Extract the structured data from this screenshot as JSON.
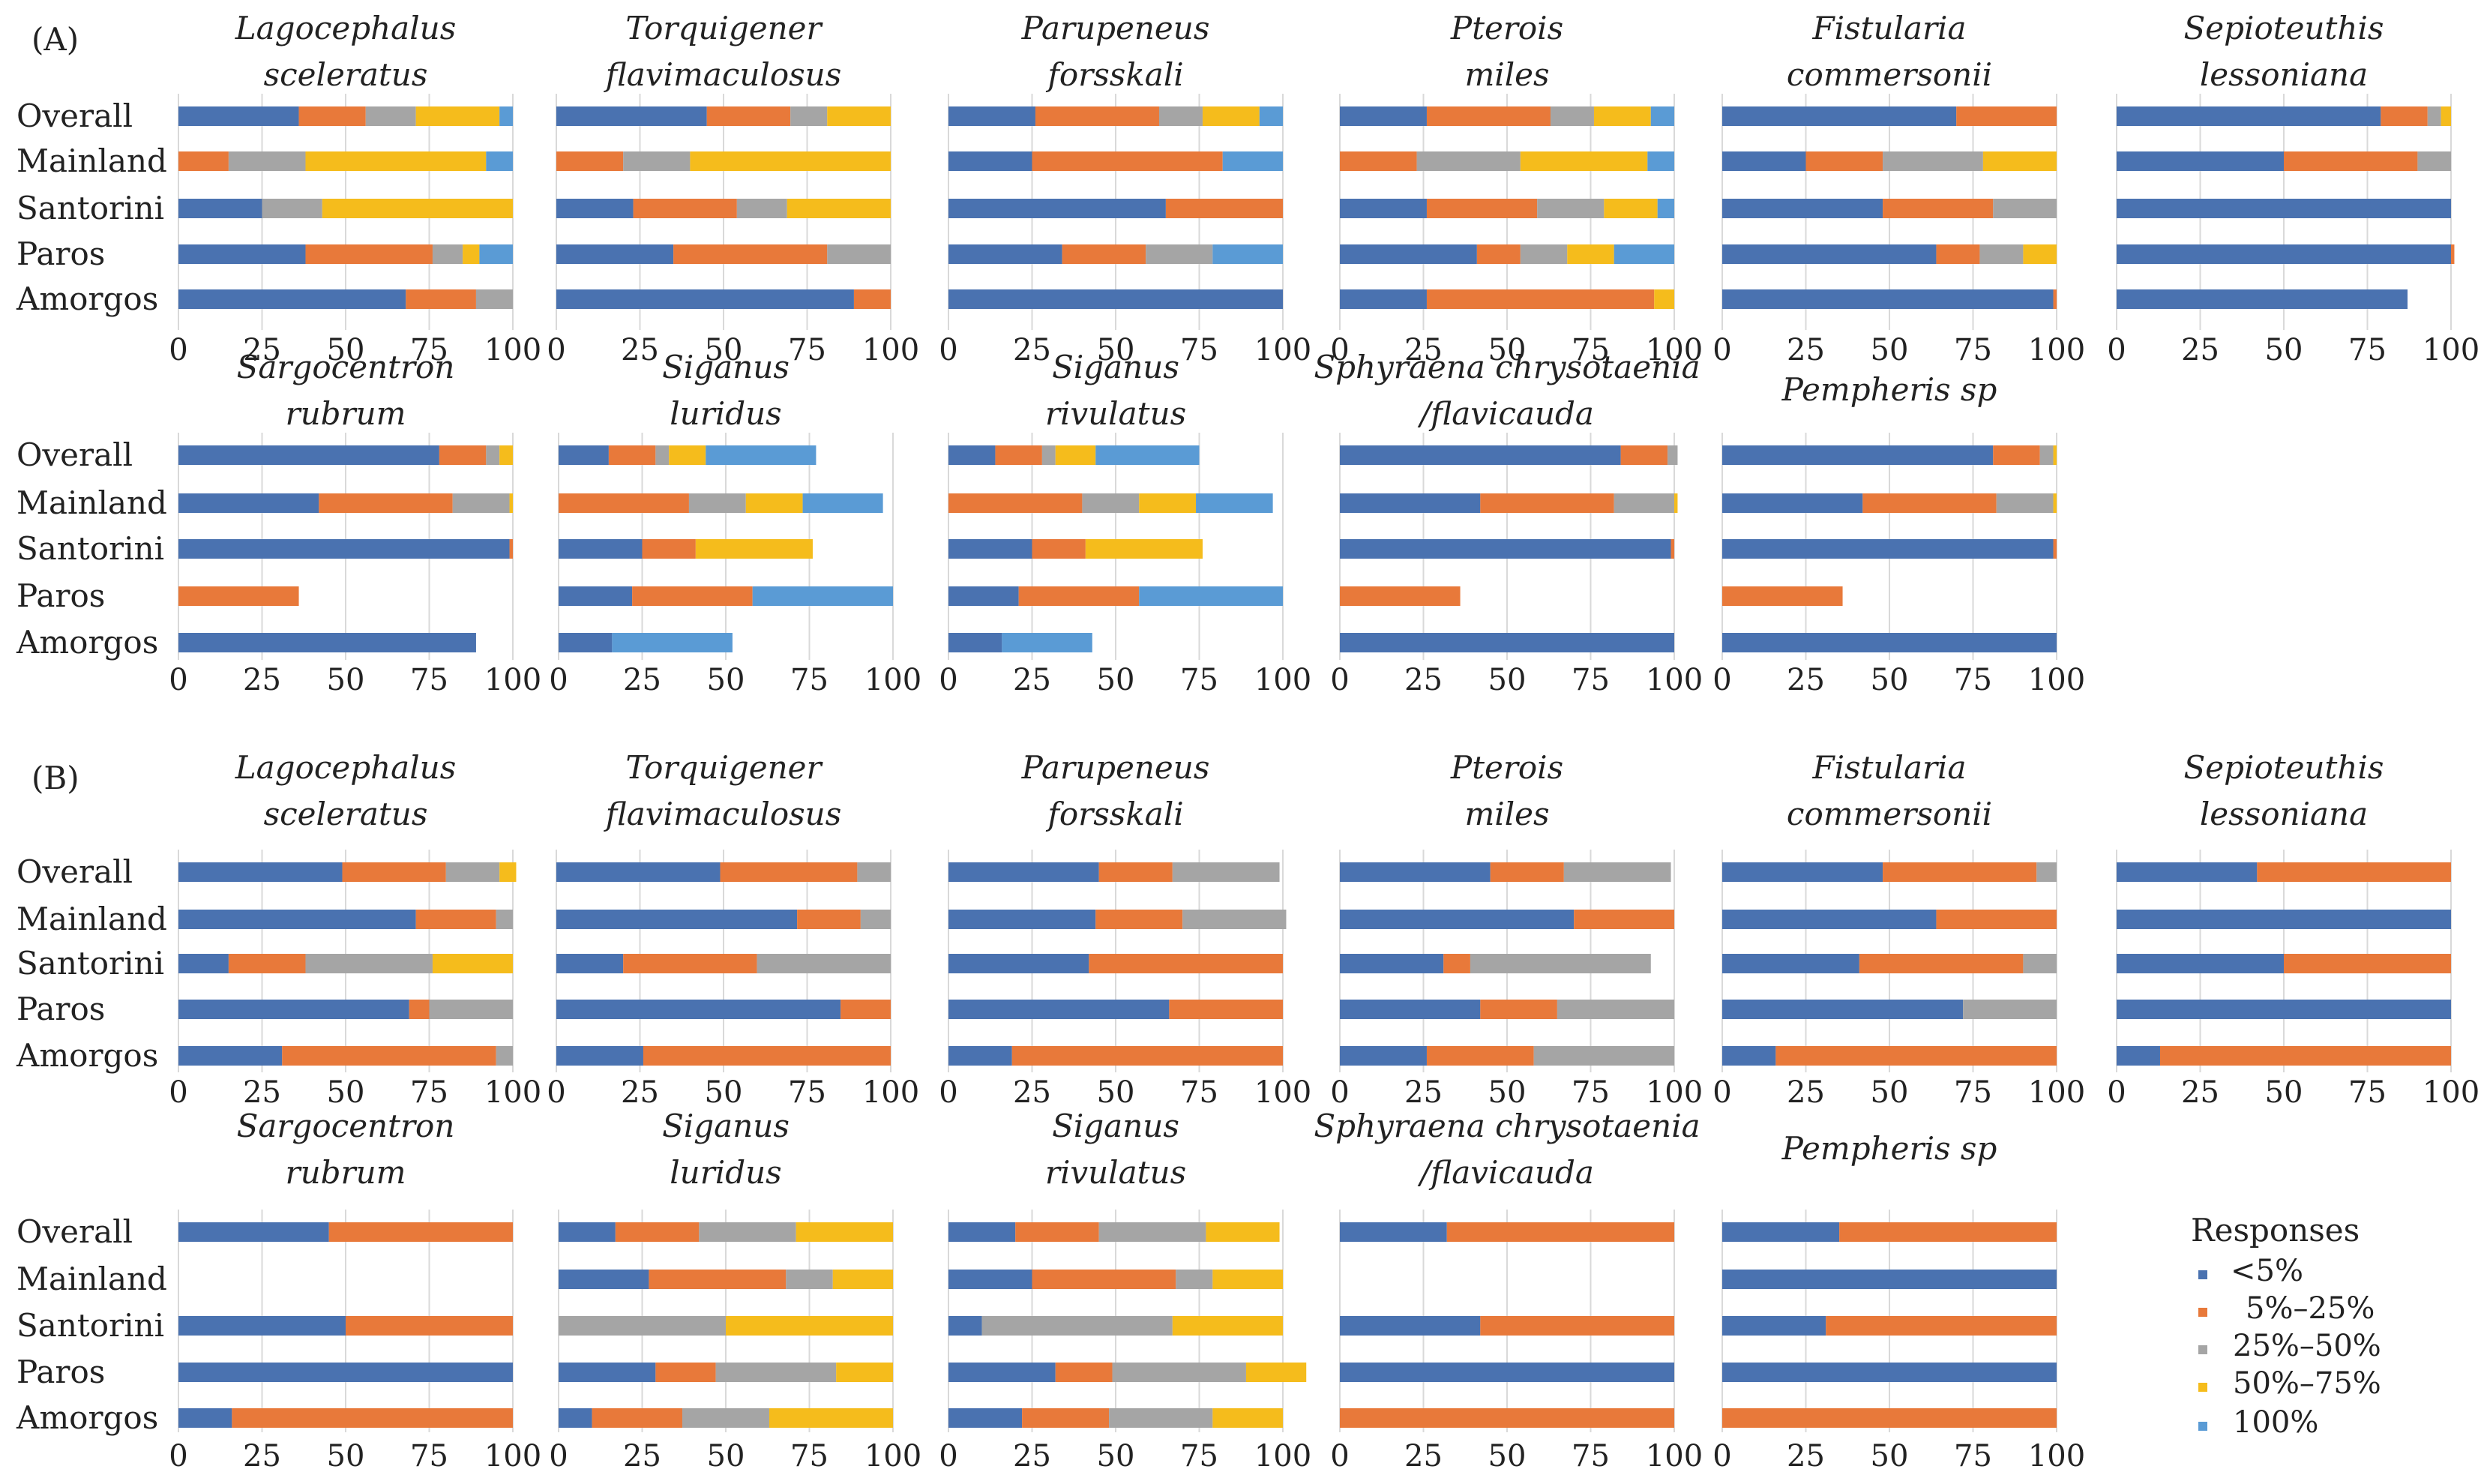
{
  "colors": {
    "lt5": "#4a72b0",
    "p5_25": "#e8793a",
    "p25_50": "#a5a5a5",
    "p50_75": "#f5bc1c",
    "p100": "#5a9bd5",
    "grid": "#d9d9d9"
  },
  "panel_labels": {
    "a": "(A)",
    "b": "(B)"
  },
  "legend": {
    "title": "Responses",
    "items": [
      "<5%",
      "5%–25%",
      "25%–50%",
      "50%–75%",
      "100%"
    ]
  },
  "chart_data": [
    {
      "panel": "A",
      "type": "bar",
      "stacked": "horizontal",
      "xlim": [
        0,
        100
      ],
      "ticks": [
        "0",
        "25",
        "50",
        "75",
        "100"
      ],
      "categories": [
        "Overall",
        "Mainland",
        "Santorini",
        "Paros",
        "Amorgos"
      ],
      "series_names": [
        "<5%",
        "5%–25%",
        "25%–50%",
        "50%–75%",
        "100%"
      ],
      "charts": [
        {
          "title": [
            "Lagocephalus",
            "sceleratus"
          ],
          "values": [
            [
              36,
              20,
              15,
              25,
              4
            ],
            [
              0,
              15,
              23,
              54,
              8
            ],
            [
              25,
              0,
              18,
              57,
              0
            ],
            [
              38,
              38,
              9,
              5,
              10
            ],
            [
              68,
              21,
              11,
              0,
              0
            ]
          ]
        },
        {
          "title": [
            "Torquigener",
            "flavimaculosus"
          ],
          "values": [
            [
              45,
              25,
              11,
              19,
              0
            ],
            [
              0,
              20,
              20,
              60,
              0
            ],
            [
              23,
              31,
              15,
              31,
              0
            ],
            [
              35,
              46,
              19,
              0,
              0
            ],
            [
              89,
              11,
              0,
              0,
              0
            ]
          ]
        },
        {
          "title": [
            "Parupeneus",
            "forsskali"
          ],
          "values": [
            [
              26,
              37,
              13,
              17,
              7
            ],
            [
              25,
              57,
              0,
              0,
              18
            ],
            [
              65,
              35,
              0,
              0,
              0
            ],
            [
              34,
              25,
              20,
              0,
              21
            ],
            [
              100,
              0,
              0,
              0,
              0
            ]
          ]
        },
        {
          "title": [
            "Pterois",
            "miles"
          ],
          "values": [
            [
              26,
              37,
              13,
              17,
              7
            ],
            [
              0,
              23,
              31,
              38,
              8
            ],
            [
              26,
              33,
              20,
              16,
              5
            ],
            [
              41,
              13,
              14,
              14,
              18
            ],
            [
              26,
              68,
              0,
              6,
              0
            ]
          ]
        },
        {
          "title": [
            "Fistularia",
            "commersonii"
          ],
          "values": [
            [
              70,
              30,
              0,
              0,
              0
            ],
            [
              25,
              23,
              30,
              22,
              0
            ],
            [
              48,
              33,
              19,
              0,
              0
            ],
            [
              64,
              13,
              13,
              10,
              0
            ],
            [
              99,
              1,
              0,
              0,
              0
            ]
          ]
        },
        {
          "title": [
            "Sepioteuthis",
            "lessoniana"
          ],
          "values": [
            [
              79,
              14,
              4,
              3,
              0
            ],
            [
              50,
              40,
              10,
              0,
              0
            ],
            [
              100,
              0,
              0,
              0,
              0
            ],
            [
              100,
              1,
              0,
              0,
              0
            ],
            [
              87,
              0,
              0,
              0,
              0
            ]
          ]
        },
        {
          "title": [
            "Sargocentron",
            "rubrum"
          ],
          "values": [
            [
              78,
              14,
              4,
              4,
              0
            ],
            [
              42,
              40,
              17,
              1,
              0
            ],
            [
              99,
              1,
              0,
              0,
              0
            ],
            [
              0,
              36,
              0,
              0,
              0
            ],
            [
              89,
              0,
              0,
              0,
              0
            ]
          ]
        },
        {
          "title": [
            "Siganus",
            "luridus"
          ],
          "values": [
            [
              15,
              14,
              4,
              11,
              33
            ],
            [
              0,
              39,
              17,
              17,
              24
            ],
            [
              25,
              16,
              0,
              35,
              0
            ],
            [
              22,
              36,
              0,
              0,
              42
            ],
            [
              16,
              0,
              0,
              0,
              36
            ]
          ]
        },
        {
          "title": [
            "Siganus",
            "rivulatus"
          ],
          "values": [
            [
              14,
              14,
              4,
              12,
              31
            ],
            [
              0,
              40,
              17,
              17,
              23
            ],
            [
              25,
              16,
              0,
              35,
              0
            ],
            [
              21,
              36,
              0,
              0,
              43
            ],
            [
              16,
              0,
              0,
              0,
              27
            ]
          ]
        },
        {
          "title": [
            "Sphyraena chrysotaenia",
            "/flavicauda"
          ],
          "values": [
            [
              84,
              14,
              3,
              0,
              0
            ],
            [
              42,
              40,
              18,
              1,
              0
            ],
            [
              99,
              1,
              0,
              0,
              0
            ],
            [
              0,
              36,
              0,
              0,
              0
            ],
            [
              100,
              0,
              0,
              0,
              0
            ]
          ]
        },
        {
          "title": [
            "Pempheris sp"
          ],
          "values": [
            [
              81,
              14,
              4,
              1,
              0
            ],
            [
              42,
              40,
              17,
              1,
              0
            ],
            [
              99,
              1,
              0,
              0,
              0
            ],
            [
              0,
              36,
              0,
              0,
              0
            ],
            [
              100,
              0,
              0,
              0,
              0
            ]
          ]
        }
      ]
    },
    {
      "panel": "B",
      "type": "bar",
      "stacked": "horizontal",
      "xlim": [
        0,
        100
      ],
      "ticks": [
        "0",
        "25",
        "50",
        "75",
        "100"
      ],
      "categories": [
        "Overall",
        "Mainland",
        "Santorini",
        "Paros",
        "Amorgos"
      ],
      "series_names": [
        "<5%",
        "5%–25%",
        "25%–50%",
        "50%–75%",
        "100%"
      ],
      "charts": [
        {
          "title": [
            "Lagocephalus",
            "sceleratus"
          ],
          "values": [
            [
              49,
              31,
              16,
              5,
              0
            ],
            [
              71,
              24,
              5,
              0,
              0
            ],
            [
              15,
              23,
              38,
              24,
              0
            ],
            [
              69,
              6,
              25,
              0,
              0
            ],
            [
              31,
              64,
              5,
              0,
              0
            ]
          ]
        },
        {
          "title": [
            "Torquigener",
            "flavimaculosus"
          ],
          "values": [
            [
              49,
              41,
              10,
              0,
              0
            ],
            [
              72,
              19,
              9,
              0,
              0
            ],
            [
              20,
              40,
              40,
              0,
              0
            ],
            [
              85,
              15,
              0,
              0,
              0
            ],
            [
              26,
              74,
              0,
              0,
              0
            ]
          ]
        },
        {
          "title": [
            "Parupeneus",
            "forsskali"
          ],
          "values": [
            [
              45,
              22,
              32,
              0,
              0
            ],
            [
              44,
              26,
              31,
              0,
              0
            ],
            [
              42,
              58,
              0,
              0,
              0
            ],
            [
              66,
              34,
              0,
              0,
              0
            ],
            [
              19,
              81,
              0,
              0,
              0
            ]
          ]
        },
        {
          "title": [
            "Pterois",
            "miles"
          ],
          "values": [
            [
              45,
              22,
              32,
              0,
              0
            ],
            [
              70,
              30,
              0,
              0,
              0
            ],
            [
              31,
              8,
              54,
              0,
              0
            ],
            [
              42,
              23,
              35,
              0,
              0
            ],
            [
              26,
              32,
              42,
              0,
              0
            ]
          ]
        },
        {
          "title": [
            "Fistularia",
            "commersonii"
          ],
          "values": [
            [
              48,
              46,
              6,
              0,
              0
            ],
            [
              64,
              36,
              0,
              0,
              0
            ],
            [
              41,
              49,
              10,
              0,
              0
            ],
            [
              72,
              0,
              28,
              0,
              0
            ],
            [
              16,
              84,
              0,
              0,
              0
            ]
          ]
        },
        {
          "title": [
            "Sepioteuthis",
            "lessoniana"
          ],
          "values": [
            [
              42,
              58,
              0,
              0,
              0
            ],
            [
              100,
              0,
              0,
              0,
              0
            ],
            [
              50,
              50,
              0,
              0,
              0
            ],
            [
              100,
              0,
              0,
              0,
              0
            ],
            [
              13,
              87,
              0,
              0,
              0
            ]
          ]
        },
        {
          "title": [
            "Sargocentron",
            "rubrum"
          ],
          "values": [
            [
              45,
              55,
              0,
              0,
              0
            ],
            [
              0,
              0,
              0,
              0,
              0
            ],
            [
              50,
              50,
              0,
              0,
              0
            ],
            [
              100,
              0,
              0,
              0,
              0
            ],
            [
              16,
              84,
              0,
              0,
              0
            ]
          ]
        },
        {
          "title": [
            "Siganus",
            "luridus"
          ],
          "values": [
            [
              17,
              25,
              29,
              29,
              0
            ],
            [
              27,
              41,
              14,
              18,
              0
            ],
            [
              0,
              0,
              50,
              50,
              0
            ],
            [
              29,
              18,
              36,
              17,
              0
            ],
            [
              10,
              27,
              26,
              37,
              0
            ]
          ]
        },
        {
          "title": [
            "Siganus",
            "rivulatus"
          ],
          "values": [
            [
              20,
              25,
              32,
              22,
              0
            ],
            [
              25,
              43,
              11,
              21,
              0
            ],
            [
              10,
              0,
              57,
              33,
              0
            ],
            [
              32,
              17,
              40,
              18,
              0
            ],
            [
              22,
              26,
              31,
              21,
              0
            ]
          ]
        },
        {
          "title": [
            "Sphyraena chrysotaenia",
            "/flavicauda"
          ],
          "values": [
            [
              32,
              68,
              0,
              0,
              0
            ],
            [
              0,
              0,
              0,
              0,
              0
            ],
            [
              42,
              58,
              0,
              0,
              0
            ],
            [
              100,
              0,
              0,
              0,
              0
            ],
            [
              0,
              100,
              0,
              0,
              0
            ]
          ]
        },
        {
          "title": [
            "Pempheris sp"
          ],
          "values": [
            [
              35,
              65,
              0,
              0,
              0
            ],
            [
              100,
              0,
              0,
              0,
              0
            ],
            [
              31,
              69,
              0,
              0,
              0
            ],
            [
              100,
              0,
              0,
              0,
              0
            ],
            [
              0,
              100,
              0,
              0,
              0
            ]
          ]
        }
      ]
    }
  ]
}
